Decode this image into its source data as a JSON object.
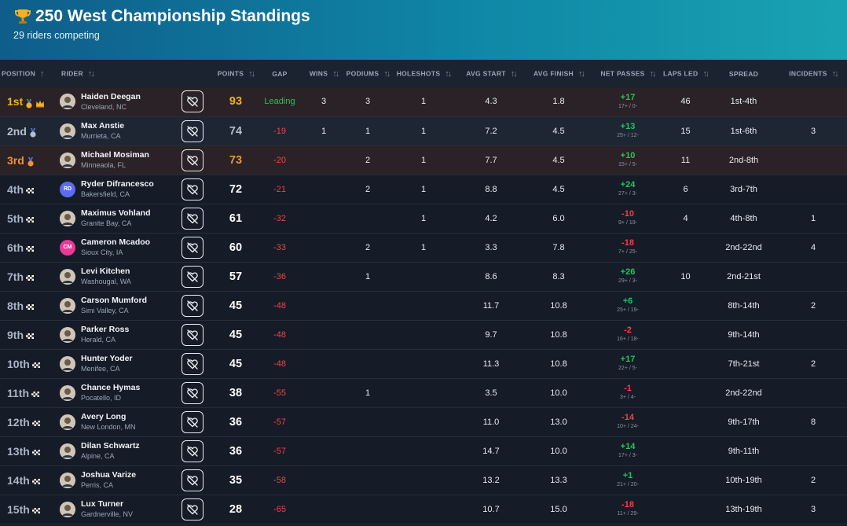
{
  "header": {
    "title": "250 West Championship Standings",
    "subtitle": "29 riders competing",
    "trophy_icon": "trophy-icon"
  },
  "columns": {
    "position": "POSITION",
    "rider": "RIDER",
    "points": "POINTS",
    "gap": "GAP",
    "wins": "WINS",
    "podiums": "PODIUMS",
    "holeshots": "HOLESHOTS",
    "avg_start": "AVG START",
    "avg_finish": "AVG FINISH",
    "net_passes": "NET PASSES",
    "laps_led": "LAPS LED",
    "spread": "SPREAD",
    "incidents": "INCIDENTS"
  },
  "colors": {
    "gold": "#f5b01e",
    "silver": "#b5bfcd",
    "bronze": "#f0913a",
    "positive": "#22c55e",
    "negative": "#ef4444"
  },
  "rows": [
    {
      "pos": "1st",
      "badge": "gold",
      "name": "Haiden Deegan",
      "loc": "Cleveland, NC",
      "avatar": "photo",
      "points": "93",
      "gap": "Leading",
      "wins": "3",
      "podiums": "3",
      "holeshots": "1",
      "avg_start": "4.3",
      "avg_finish": "1.8",
      "net": "+17",
      "net_detail": "17+ / 0-",
      "laps_led": "46",
      "spread": "1st-4th",
      "incidents": ""
    },
    {
      "pos": "2nd",
      "badge": "silver",
      "name": "Max Anstie",
      "loc": "Murrieta, CA",
      "avatar": "photo",
      "points": "74",
      "gap": "-19",
      "wins": "1",
      "podiums": "1",
      "holeshots": "1",
      "avg_start": "7.2",
      "avg_finish": "4.5",
      "net": "+13",
      "net_detail": "25+ / 12-",
      "laps_led": "15",
      "spread": "1st-6th",
      "incidents": "3"
    },
    {
      "pos": "3rd",
      "badge": "bronze",
      "name": "Michael Mosiman",
      "loc": "Minneaola, FL",
      "avatar": "photo",
      "points": "73",
      "gap": "-20",
      "wins": "",
      "podiums": "2",
      "holeshots": "1",
      "avg_start": "7.7",
      "avg_finish": "4.5",
      "net": "+10",
      "net_detail": "15+ / 5-",
      "laps_led": "11",
      "spread": "2nd-8th",
      "incidents": ""
    },
    {
      "pos": "4th",
      "badge": "flag",
      "name": "Ryder Difrancesco",
      "loc": "Bakersfield, CA",
      "avatar": "RD",
      "points": "72",
      "gap": "-21",
      "wins": "",
      "podiums": "2",
      "holeshots": "1",
      "avg_start": "8.8",
      "avg_finish": "4.5",
      "net": "+24",
      "net_detail": "27+ / 3-",
      "laps_led": "6",
      "spread": "3rd-7th",
      "incidents": ""
    },
    {
      "pos": "5th",
      "badge": "flag",
      "name": "Maximus Vohland",
      "loc": "Granite Bay, CA",
      "avatar": "photo",
      "points": "61",
      "gap": "-32",
      "wins": "",
      "podiums": "",
      "holeshots": "1",
      "avg_start": "4.2",
      "avg_finish": "6.0",
      "net": "-10",
      "net_detail": "9+ / 19-",
      "laps_led": "4",
      "spread": "4th-8th",
      "incidents": "1"
    },
    {
      "pos": "6th",
      "badge": "flag",
      "name": "Cameron Mcadoo",
      "loc": "Sioux City, IA",
      "avatar": "CM",
      "points": "60",
      "gap": "-33",
      "wins": "",
      "podiums": "2",
      "holeshots": "1",
      "avg_start": "3.3",
      "avg_finish": "7.8",
      "net": "-18",
      "net_detail": "7+ / 25-",
      "laps_led": "",
      "spread": "2nd-22nd",
      "incidents": "4"
    },
    {
      "pos": "7th",
      "badge": "flag",
      "name": "Levi Kitchen",
      "loc": "Washougal, WA",
      "avatar": "photo",
      "points": "57",
      "gap": "-36",
      "wins": "",
      "podiums": "1",
      "holeshots": "",
      "avg_start": "8.6",
      "avg_finish": "8.3",
      "net": "+26",
      "net_detail": "29+ / 3-",
      "laps_led": "10",
      "spread": "2nd-21st",
      "incidents": ""
    },
    {
      "pos": "8th",
      "badge": "flag",
      "name": "Carson Mumford",
      "loc": "Simi Valley, CA",
      "avatar": "photo",
      "points": "45",
      "gap": "-48",
      "wins": "",
      "podiums": "",
      "holeshots": "",
      "avg_start": "11.7",
      "avg_finish": "10.8",
      "net": "+6",
      "net_detail": "25+ / 19-",
      "laps_led": "",
      "spread": "8th-14th",
      "incidents": "2"
    },
    {
      "pos": "9th",
      "badge": "flag",
      "name": "Parker Ross",
      "loc": "Herald, CA",
      "avatar": "photo",
      "points": "45",
      "gap": "-48",
      "wins": "",
      "podiums": "",
      "holeshots": "",
      "avg_start": "9.7",
      "avg_finish": "10.8",
      "net": "-2",
      "net_detail": "16+ / 18-",
      "laps_led": "",
      "spread": "9th-14th",
      "incidents": ""
    },
    {
      "pos": "10th",
      "badge": "flag",
      "name": "Hunter Yoder",
      "loc": "Menifee, CA",
      "avatar": "photo",
      "points": "45",
      "gap": "-48",
      "wins": "",
      "podiums": "",
      "holeshots": "",
      "avg_start": "11.3",
      "avg_finish": "10.8",
      "net": "+17",
      "net_detail": "22+ / 5-",
      "laps_led": "",
      "spread": "7th-21st",
      "incidents": "2"
    },
    {
      "pos": "11th",
      "badge": "flag",
      "name": "Chance Hymas",
      "loc": "Pocatello, ID",
      "avatar": "photo",
      "points": "38",
      "gap": "-55",
      "wins": "",
      "podiums": "1",
      "holeshots": "",
      "avg_start": "3.5",
      "avg_finish": "10.0",
      "net": "-1",
      "net_detail": "3+ / 4-",
      "laps_led": "",
      "spread": "2nd-22nd",
      "incidents": ""
    },
    {
      "pos": "12th",
      "badge": "flag",
      "name": "Avery Long",
      "loc": "New London, MN",
      "avatar": "photo",
      "points": "36",
      "gap": "-57",
      "wins": "",
      "podiums": "",
      "holeshots": "",
      "avg_start": "11.0",
      "avg_finish": "13.0",
      "net": "-14",
      "net_detail": "10+ / 24-",
      "laps_led": "",
      "spread": "9th-17th",
      "incidents": "8"
    },
    {
      "pos": "13th",
      "badge": "flag",
      "name": "Dilan Schwartz",
      "loc": "Alpine, CA",
      "avatar": "photo",
      "points": "36",
      "gap": "-57",
      "wins": "",
      "podiums": "",
      "holeshots": "",
      "avg_start": "14.7",
      "avg_finish": "10.0",
      "net": "+14",
      "net_detail": "17+ / 3-",
      "laps_led": "",
      "spread": "9th-11th",
      "incidents": ""
    },
    {
      "pos": "14th",
      "badge": "flag",
      "name": "Joshua Varize",
      "loc": "Perris, CA",
      "avatar": "photo",
      "points": "35",
      "gap": "-58",
      "wins": "",
      "podiums": "",
      "holeshots": "",
      "avg_start": "13.2",
      "avg_finish": "13.3",
      "net": "+1",
      "net_detail": "21+ / 20-",
      "laps_led": "",
      "spread": "10th-19th",
      "incidents": "2"
    },
    {
      "pos": "15th",
      "badge": "flag",
      "name": "Lux Turner",
      "loc": "Gardnerville, NV",
      "avatar": "photo",
      "points": "28",
      "gap": "-65",
      "wins": "",
      "podiums": "",
      "holeshots": "",
      "avg_start": "10.7",
      "avg_finish": "15.0",
      "net": "-18",
      "net_detail": "11+ / 29-",
      "laps_led": "",
      "spread": "13th-19th",
      "incidents": "3"
    }
  ]
}
